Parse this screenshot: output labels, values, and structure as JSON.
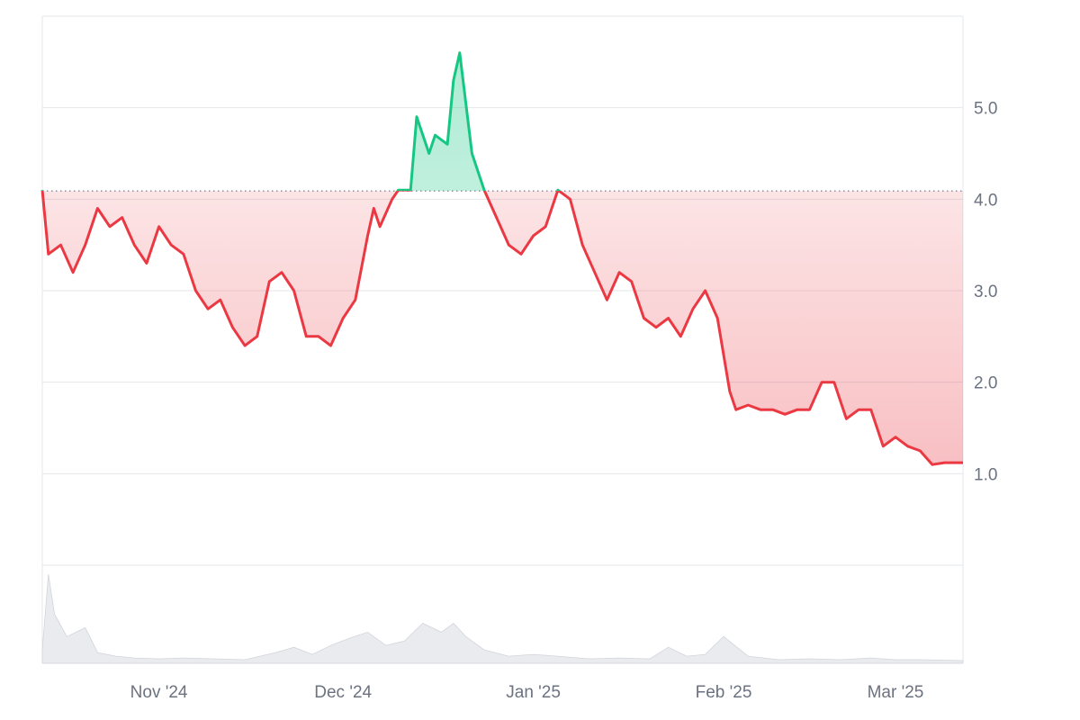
{
  "chart_data": {
    "type": "area",
    "baseline": 4.09,
    "y_ticks": [
      "5.0",
      "4.0",
      "3.0",
      "2.0",
      "1.0"
    ],
    "y_tick_values": [
      5.0,
      4.0,
      3.0,
      2.0,
      1.0
    ],
    "ylim": [
      0,
      6.0
    ],
    "x_ticks": [
      "Nov '24",
      "Dec '24",
      "Jan '25",
      "Feb '25",
      "Mar '25"
    ],
    "x_tick_dates": [
      "2024-11-01",
      "2024-12-01",
      "2025-01-01",
      "2025-02-01",
      "2025-03-01"
    ],
    "xlim": [
      "2024-10-13",
      "2025-03-12"
    ],
    "price_series": {
      "x": [
        "2024-10-13",
        "2024-10-14",
        "2024-10-16",
        "2024-10-18",
        "2024-10-20",
        "2024-10-22",
        "2024-10-24",
        "2024-10-26",
        "2024-10-28",
        "2024-10-30",
        "2024-11-01",
        "2024-11-03",
        "2024-11-05",
        "2024-11-07",
        "2024-11-09",
        "2024-11-11",
        "2024-11-13",
        "2024-11-15",
        "2024-11-17",
        "2024-11-19",
        "2024-11-21",
        "2024-11-23",
        "2024-11-25",
        "2024-11-27",
        "2024-11-29",
        "2024-12-01",
        "2024-12-03",
        "2024-12-05",
        "2024-12-06",
        "2024-12-07",
        "2024-12-09",
        "2024-12-10",
        "2024-12-12",
        "2024-12-13",
        "2024-12-15",
        "2024-12-16",
        "2024-12-18",
        "2024-12-19",
        "2024-12-20",
        "2024-12-22",
        "2024-12-24",
        "2024-12-26",
        "2024-12-28",
        "2024-12-30",
        "2025-01-01",
        "2025-01-03",
        "2025-01-05",
        "2025-01-07",
        "2025-01-09",
        "2025-01-11",
        "2025-01-13",
        "2025-01-15",
        "2025-01-17",
        "2025-01-19",
        "2025-01-21",
        "2025-01-23",
        "2025-01-25",
        "2025-01-27",
        "2025-01-29",
        "2025-01-31",
        "2025-02-02",
        "2025-02-03",
        "2025-02-05",
        "2025-02-07",
        "2025-02-09",
        "2025-02-11",
        "2025-02-13",
        "2025-02-15",
        "2025-02-17",
        "2025-02-19",
        "2025-02-21",
        "2025-02-23",
        "2025-02-25",
        "2025-02-27",
        "2025-03-01",
        "2025-03-03",
        "2025-03-05",
        "2025-03-07",
        "2025-03-09",
        "2025-03-12"
      ],
      "values": [
        4.1,
        3.4,
        3.5,
        3.2,
        3.5,
        3.9,
        3.7,
        3.8,
        3.5,
        3.3,
        3.7,
        3.5,
        3.4,
        3.0,
        2.8,
        2.9,
        2.6,
        2.4,
        2.5,
        3.1,
        3.2,
        3.0,
        2.5,
        2.5,
        2.4,
        2.7,
        2.9,
        3.6,
        3.9,
        3.7,
        4.0,
        4.1,
        4.1,
        4.9,
        4.5,
        4.7,
        4.6,
        5.3,
        5.6,
        4.5,
        4.1,
        3.8,
        3.5,
        3.4,
        3.6,
        3.7,
        4.1,
        4.0,
        3.5,
        3.2,
        2.9,
        3.2,
        3.1,
        2.7,
        2.6,
        2.7,
        2.5,
        2.8,
        3.0,
        2.7,
        1.9,
        1.7,
        1.75,
        1.7,
        1.7,
        1.65,
        1.7,
        1.7,
        2.0,
        2.0,
        1.6,
        1.7,
        1.7,
        1.3,
        1.4,
        1.3,
        1.25,
        1.1,
        1.12,
        1.12
      ]
    },
    "volume_series": {
      "x": [
        "2024-10-13",
        "2024-10-14",
        "2024-10-15",
        "2024-10-17",
        "2024-10-20",
        "2024-10-22",
        "2024-10-25",
        "2024-10-28",
        "2024-11-01",
        "2024-11-05",
        "2024-11-10",
        "2024-11-15",
        "2024-11-20",
        "2024-11-23",
        "2024-11-26",
        "2024-11-29",
        "2024-12-02",
        "2024-12-05",
        "2024-12-08",
        "2024-12-11",
        "2024-12-14",
        "2024-12-17",
        "2024-12-19",
        "2024-12-21",
        "2024-12-24",
        "2024-12-28",
        "2025-01-01",
        "2025-01-05",
        "2025-01-10",
        "2025-01-15",
        "2025-01-20",
        "2025-01-23",
        "2025-01-26",
        "2025-01-29",
        "2025-02-01",
        "2025-02-05",
        "2025-02-10",
        "2025-02-15",
        "2025-02-20",
        "2025-02-25",
        "2025-03-01",
        "2025-03-05",
        "2025-03-12"
      ],
      "values": [
        0.15,
        1.0,
        0.55,
        0.3,
        0.4,
        0.12,
        0.08,
        0.06,
        0.05,
        0.06,
        0.05,
        0.04,
        0.12,
        0.18,
        0.1,
        0.2,
        0.28,
        0.35,
        0.2,
        0.25,
        0.45,
        0.35,
        0.45,
        0.3,
        0.15,
        0.08,
        0.1,
        0.08,
        0.05,
        0.06,
        0.05,
        0.18,
        0.08,
        0.1,
        0.3,
        0.08,
        0.04,
        0.05,
        0.04,
        0.06,
        0.04,
        0.04,
        0.03
      ]
    },
    "colors": {
      "above": "#16c784",
      "below": "#ea3943",
      "volume": "#e5e7eb",
      "grid": "#e5e7eb",
      "baseline": "#6b7280"
    },
    "grid": true
  }
}
